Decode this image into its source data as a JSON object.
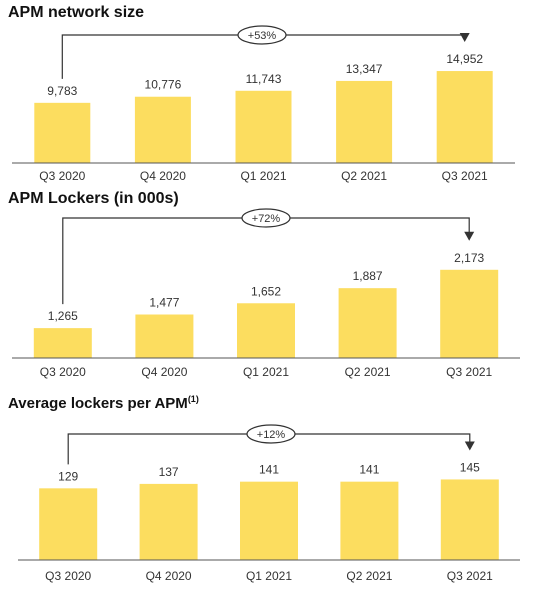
{
  "colors": {
    "bar": "#fcdd5f",
    "line": "#333333",
    "axis": "#555555"
  },
  "chart_data": [
    {
      "type": "bar",
      "title": "APM network size",
      "categories": [
        "Q3 2020",
        "Q4 2020",
        "Q1 2021",
        "Q2 2021",
        "Q3 2021"
      ],
      "values": [
        9783,
        10776,
        11743,
        13347,
        14952
      ],
      "value_labels": [
        "9,783",
        "10,776",
        "11,743",
        "13,347",
        "14,952"
      ],
      "growth_label": "+53%",
      "ylim": [
        0,
        20000
      ]
    },
    {
      "type": "bar",
      "title": "APM Lockers (in 000s)",
      "categories": [
        "Q3 2020",
        "Q4 2020",
        "Q1 2021",
        "Q2 2021",
        "Q3 2021"
      ],
      "values": [
        1265,
        1477,
        1652,
        1887,
        2173
      ],
      "value_labels": [
        "1,265",
        "1,477",
        "1,652",
        "1,887",
        "2,173"
      ],
      "growth_label": "+72%",
      "ylim": [
        800,
        2450
      ]
    },
    {
      "type": "bar",
      "title": "Average lockers per APM",
      "title_superscript": "(1)",
      "categories": [
        "Q3 2020",
        "Q4 2020",
        "Q1 2021",
        "Q2 2021",
        "Q3 2021"
      ],
      "values": [
        129,
        137,
        141,
        141,
        145
      ],
      "value_labels": [
        "129",
        "137",
        "141",
        "141",
        "145"
      ],
      "growth_label": "+12%",
      "ylim": [
        0,
        180
      ]
    }
  ]
}
